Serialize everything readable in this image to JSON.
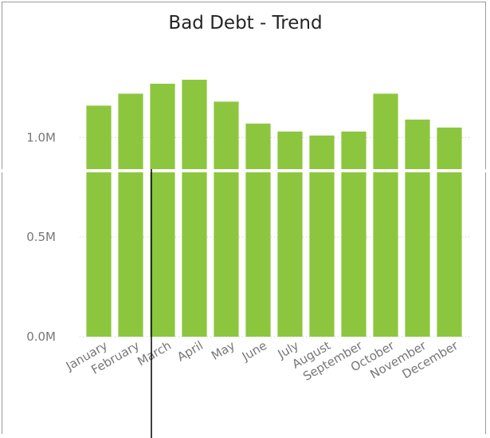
{
  "chart_data": {
    "type": "bar",
    "title": "Bad Debt - Trend",
    "xlabel": "",
    "ylabel": "",
    "categories": [
      "January",
      "February",
      "March",
      "April",
      "May",
      "June",
      "July",
      "August",
      "September",
      "October",
      "November",
      "December"
    ],
    "values": [
      1.16,
      1.22,
      1.27,
      1.29,
      1.18,
      1.07,
      1.03,
      1.01,
      1.03,
      1.22,
      1.09,
      1.05
    ],
    "unit": "M",
    "ylim": [
      0,
      1.45
    ],
    "yticks": [
      {
        "value": 0,
        "label": "0.0M"
      },
      {
        "value": 0.5,
        "label": "0.5M"
      },
      {
        "value": 1.0,
        "label": "1.0M"
      }
    ],
    "grid": true,
    "legend": "none",
    "bar_color": "#8cc63f"
  }
}
